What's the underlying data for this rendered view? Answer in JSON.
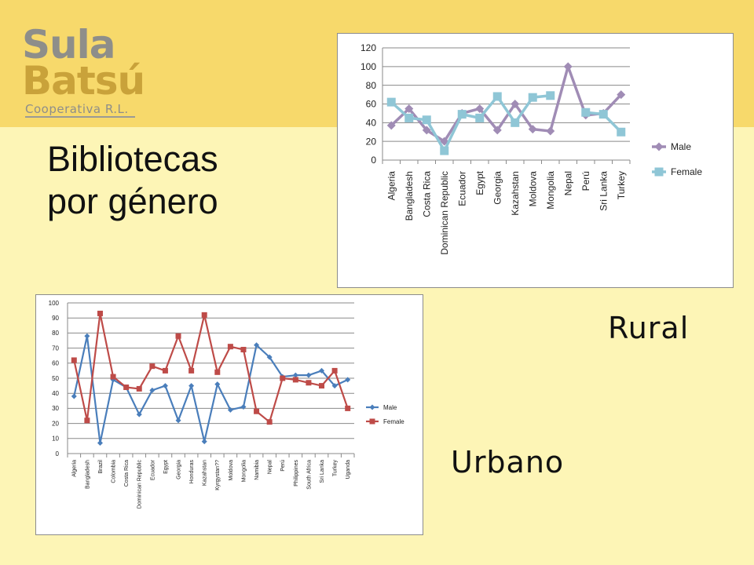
{
  "logo": {
    "line1": "Sula",
    "line2": "Batsú",
    "line3": "Cooperativa R.L."
  },
  "title": {
    "line1": "Bibliotecas",
    "line2": "por género"
  },
  "labels": {
    "rural": "Rural",
    "urban": "Urbano"
  },
  "colors": {
    "header": "#f7d96b",
    "background": "#fdf5b6",
    "rural_male": "#a08cb5",
    "rural_female": "#8fc6d6",
    "urban_male": "#4a7ebb",
    "urban_female": "#be4b48"
  },
  "chart_data": [
    {
      "type": "line",
      "categories": [
        "Algeria",
        "Bangladesh",
        "Costa Rica",
        "Dominican Republic",
        "Ecuador",
        "Egypt",
        "Georgia",
        "Kazahstan",
        "Moldova",
        "Mongolia",
        "Nepal",
        "Perú",
        "Sri Lanka",
        "Turkey"
      ],
      "series": [
        {
          "name": "Male",
          "values": [
            37,
            55,
            32,
            20,
            50,
            55,
            32,
            60,
            33,
            31,
            100,
            48,
            50,
            70
          ]
        },
        {
          "name": "Female",
          "values": [
            62,
            45,
            43,
            10,
            49,
            45,
            68,
            40,
            67,
            69,
            null,
            51,
            49,
            30
          ]
        }
      ],
      "ylim": [
        0,
        120
      ],
      "yticks": [
        0,
        20,
        40,
        60,
        80,
        100,
        120
      ],
      "grid": true,
      "legend": "right"
    },
    {
      "type": "line",
      "categories": [
        "Algeria",
        "Bangladesh",
        "Brazil",
        "Colombia",
        "Costa Rica",
        "Dominican Republic",
        "Ecuador",
        "Egypt",
        "Georgia",
        "Honduras",
        "Kazahstan",
        "Kyrgystan??",
        "Moldova",
        "Mongolia",
        "Namibia",
        "Nepal",
        "Perú",
        "Philippines",
        "South Africa",
        "Sri Lanka",
        "Turkey",
        "Uganda"
      ],
      "series": [
        {
          "name": "Male",
          "values": [
            38,
            78,
            7,
            49,
            44,
            26,
            42,
            45,
            22,
            45,
            8,
            46,
            29,
            31,
            72,
            64,
            51,
            52,
            52,
            55,
            45,
            49
          ]
        },
        {
          "name": "Female",
          "values": [
            62,
            22,
            93,
            51,
            44,
            43,
            58,
            55,
            78,
            55,
            92,
            54,
            71,
            69,
            28,
            21,
            50,
            49,
            47,
            45,
            55,
            30
          ]
        }
      ],
      "ylim": [
        0,
        100
      ],
      "yticks": [
        0,
        10,
        20,
        30,
        40,
        50,
        60,
        70,
        80,
        90,
        100
      ],
      "grid": true,
      "legend": "right"
    }
  ]
}
